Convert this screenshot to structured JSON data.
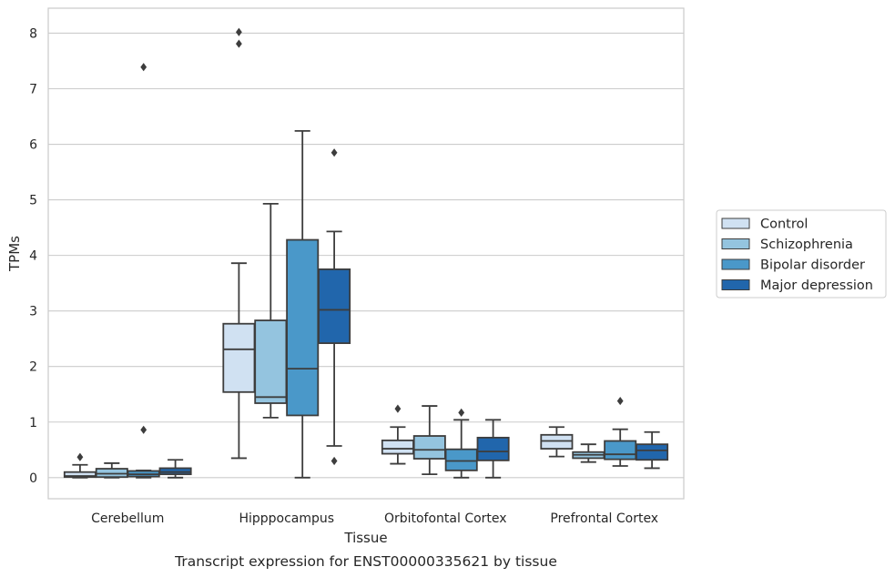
{
  "caption": "Transcript expression for ENST00000335621 by tissue",
  "chart_data": {
    "type": "box",
    "title": "",
    "xlabel": "Tissue",
    "ylabel": "TPMs",
    "ylim": [
      -0.38,
      8.45
    ],
    "yticks": [
      0,
      1,
      2,
      3,
      4,
      5,
      6,
      7,
      8
    ],
    "grid": "horizontal",
    "legend_position": "right",
    "categories": [
      "Cerebellum",
      "Hipppocampus",
      "Orbitofontal Cortex",
      "Prefrontal Cortex"
    ],
    "series": [
      {
        "name": "Control",
        "color": "#d0e1f2",
        "boxes": [
          {
            "whislo": 0.0,
            "q1": 0.01,
            "med": 0.03,
            "q3": 0.1,
            "whishi": 0.23,
            "fliers": [
              0.37
            ]
          },
          {
            "whislo": 0.35,
            "q1": 1.54,
            "med": 2.31,
            "q3": 2.77,
            "whishi": 3.86,
            "fliers": [
              7.81,
              8.02
            ]
          },
          {
            "whislo": 0.25,
            "q1": 0.43,
            "med": 0.52,
            "q3": 0.67,
            "whishi": 0.91,
            "fliers": [
              1.24
            ]
          },
          {
            "whislo": 0.38,
            "q1": 0.52,
            "med": 0.66,
            "q3": 0.77,
            "whishi": 0.91,
            "fliers": []
          }
        ]
      },
      {
        "name": "Schizophrenia",
        "color": "#94c4df",
        "boxes": [
          {
            "whislo": 0.0,
            "q1": 0.01,
            "med": 0.07,
            "q3": 0.16,
            "whishi": 0.26,
            "fliers": []
          },
          {
            "whislo": 1.08,
            "q1": 1.34,
            "med": 1.45,
            "q3": 2.83,
            "whishi": 4.93,
            "fliers": []
          },
          {
            "whislo": 0.06,
            "q1": 0.34,
            "med": 0.5,
            "q3": 0.75,
            "whishi": 1.29,
            "fliers": []
          },
          {
            "whislo": 0.28,
            "q1": 0.35,
            "med": 0.41,
            "q3": 0.46,
            "whishi": 0.6,
            "fliers": []
          }
        ]
      },
      {
        "name": "Bipolar disorder",
        "color": "#4a98c9",
        "boxes": [
          {
            "whislo": 0.0,
            "q1": 0.02,
            "med": 0.06,
            "q3": 0.12,
            "whishi": 0.13,
            "fliers": [
              0.86,
              7.39
            ]
          },
          {
            "whislo": 0.0,
            "q1": 1.12,
            "med": 1.96,
            "q3": 4.28,
            "whishi": 6.24,
            "fliers": []
          },
          {
            "whislo": 0.0,
            "q1": 0.13,
            "med": 0.3,
            "q3": 0.51,
            "whishi": 1.04,
            "fliers": [
              1.17
            ]
          },
          {
            "whislo": 0.21,
            "q1": 0.33,
            "med": 0.42,
            "q3": 0.66,
            "whishi": 0.87,
            "fliers": [
              1.38
            ]
          }
        ]
      },
      {
        "name": "Major depression",
        "color": "#2166ac",
        "boxes": [
          {
            "whislo": 0.0,
            "q1": 0.06,
            "med": 0.1,
            "q3": 0.17,
            "whishi": 0.32,
            "fliers": []
          },
          {
            "whislo": 0.57,
            "q1": 2.42,
            "med": 3.02,
            "q3": 3.75,
            "whishi": 4.43,
            "fliers": [
              0.3,
              5.85
            ]
          },
          {
            "whislo": 0.0,
            "q1": 0.31,
            "med": 0.47,
            "q3": 0.72,
            "whishi": 1.04,
            "fliers": []
          },
          {
            "whislo": 0.17,
            "q1": 0.32,
            "med": 0.49,
            "q3": 0.6,
            "whishi": 0.82,
            "fliers": []
          }
        ]
      }
    ]
  }
}
